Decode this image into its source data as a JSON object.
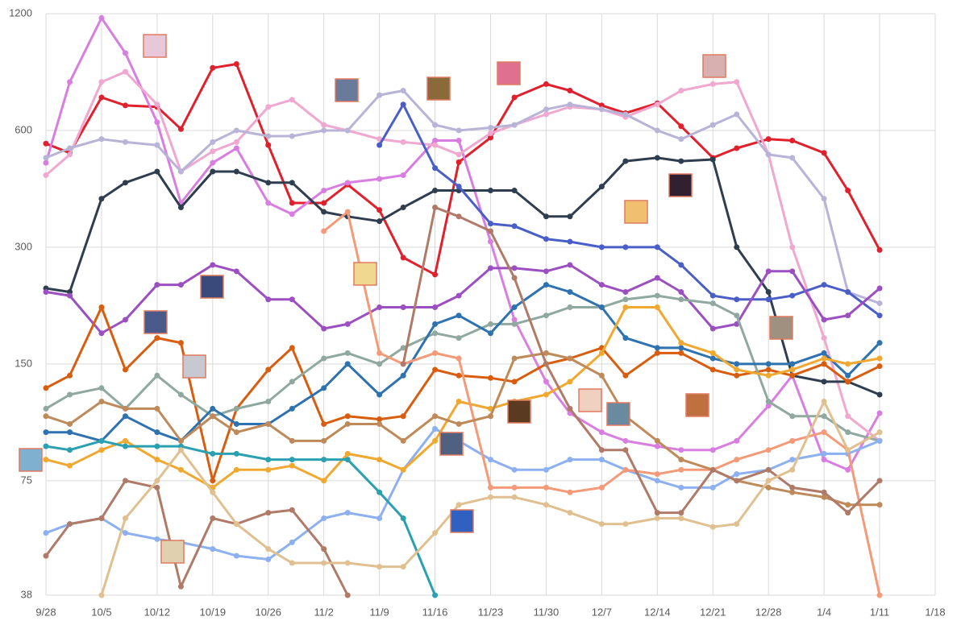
{
  "chart_data": {
    "type": "line",
    "log_y": true,
    "grid": true,
    "markers": true,
    "x": [
      "9/28",
      "10/1",
      "10/5",
      "10/8",
      "10/12",
      "10/15",
      "10/19",
      "10/22",
      "10/26",
      "10/29",
      "11/2",
      "11/5",
      "11/9",
      "11/12",
      "11/16",
      "11/19",
      "11/23",
      "11/26",
      "11/30",
      "12/3",
      "12/7",
      "12/10",
      "12/14",
      "12/17",
      "12/21",
      "12/24",
      "12/28",
      "12/31",
      "1/4",
      "1/7",
      "1/11"
    ],
    "xlim": [
      "9/28",
      "1/18"
    ],
    "xticks": [
      "9/28",
      "10/5",
      "10/12",
      "10/19",
      "10/26",
      "11/2",
      "11/9",
      "11/16",
      "11/23",
      "11/30",
      "12/7",
      "12/14",
      "12/21",
      "12/28",
      "1/4",
      "1/11",
      "1/18"
    ],
    "ylim": [
      38,
      1200
    ],
    "yticks": [
      38,
      75,
      150,
      300,
      600,
      1200
    ],
    "series": [
      {
        "color": "#e0202c",
        "values": [
          555,
          525,
          730,
          696,
          690,
          605,
          870,
          890,
          550,
          390,
          390,
          435,
          374,
          282,
          255,
          497,
          575,
          730,
          790,
          760,
          696,
          665,
          705,
          615,
          510,
          540,
          570,
          565,
          525,
          420,
          295
        ]
      },
      {
        "color": "#d87ee0",
        "values": [
          495,
          800,
          1170,
          950,
          630,
          390,
          495,
          540,
          390,
          365,
          420,
          440,
          450,
          460,
          565,
          565,
          310,
          195,
          135,
          112,
          100,
          95,
          92,
          90,
          90,
          95,
          117,
          140,
          85,
          80,
          112
        ]
      },
      {
        "color": "#f0a8d0",
        "values": [
          460,
          520,
          800,
          850,
          700,
          470,
          530,
          560,
          690,
          720,
          620,
          600,
          570,
          560,
          550,
          520,
          590,
          620,
          660,
          690,
          680,
          650,
          700,
          760,
          790,
          800,
          520,
          300,
          175,
          110,
          95
        ]
      },
      {
        "color": "#b8b4d8",
        "values": [
          510,
          540,
          570,
          560,
          550,
          470,
          560,
          600,
          580,
          580,
          600,
          600,
          740,
          760,
          620,
          600,
          610,
          620,
          680,
          700,
          680,
          660,
          600,
          570,
          620,
          660,
          520,
          510,
          400,
          230,
          215
        ]
      },
      {
        "color": "#2e3e4e",
        "values": [
          235,
          230,
          400,
          440,
          470,
          380,
          470,
          470,
          440,
          440,
          370,
          360,
          350,
          380,
          420,
          420,
          420,
          420,
          360,
          360,
          430,
          500,
          510,
          500,
          505,
          300,
          230,
          140,
          135,
          135,
          125
        ]
      },
      {
        "color": "#4a5ec8",
        "values": [
          null,
          null,
          null,
          null,
          null,
          null,
          null,
          null,
          null,
          null,
          null,
          null,
          550,
          700,
          480,
          430,
          345,
          340,
          315,
          310,
          300,
          300,
          300,
          270,
          225,
          220,
          220,
          225,
          240,
          230,
          200
        ]
      },
      {
        "color": "#9b4fc0",
        "values": [
          230,
          225,
          180,
          195,
          240,
          240,
          270,
          260,
          220,
          220,
          185,
          190,
          210,
          210,
          210,
          225,
          265,
          265,
          260,
          270,
          240,
          230,
          250,
          230,
          185,
          190,
          260,
          260,
          195,
          200,
          235
        ]
      },
      {
        "color": "#d95d0e",
        "values": [
          130,
          140,
          210,
          145,
          175,
          170,
          75,
          115,
          145,
          165,
          105,
          110,
          108,
          110,
          145,
          140,
          138,
          135,
          150,
          155,
          165,
          140,
          160,
          160,
          145,
          140,
          145,
          140,
          150,
          135,
          148
        ]
      },
      {
        "color": "#8fa8a0",
        "values": [
          115,
          125,
          130,
          115,
          140,
          125,
          110,
          115,
          120,
          135,
          155,
          160,
          150,
          165,
          180,
          175,
          190,
          190,
          200,
          210,
          210,
          220,
          225,
          220,
          215,
          200,
          120,
          110,
          110,
          100,
          95
        ]
      },
      {
        "color": "#2f72b0",
        "values": [
          100,
          100,
          95,
          110,
          100,
          95,
          115,
          105,
          105,
          115,
          130,
          150,
          125,
          140,
          190,
          200,
          180,
          210,
          240,
          230,
          210,
          175,
          165,
          165,
          155,
          150,
          150,
          150,
          160,
          140,
          170
        ]
      },
      {
        "color": "#8cb0f0",
        "values": [
          55,
          58,
          60,
          55,
          53,
          52,
          50,
          48,
          47,
          52,
          60,
          62,
          60,
          80,
          102,
          95,
          85,
          80,
          80,
          85,
          85,
          80,
          75,
          72,
          72,
          78,
          80,
          85,
          88,
          88,
          95
        ]
      },
      {
        "color": "#f0a830",
        "values": [
          85,
          82,
          90,
          95,
          85,
          80,
          72,
          80,
          80,
          82,
          75,
          88,
          85,
          80,
          95,
          120,
          115,
          120,
          125,
          135,
          160,
          210,
          210,
          170,
          160,
          145,
          140,
          145,
          155,
          150,
          155
        ]
      },
      {
        "color": "#2aa0b0",
        "values": [
          92,
          90,
          95,
          92,
          92,
          92,
          88,
          88,
          85,
          85,
          85,
          85,
          70,
          60,
          38,
          null,
          null,
          null,
          null,
          null,
          null,
          null,
          null,
          null,
          null,
          null,
          null,
          null,
          null,
          null,
          null
        ]
      },
      {
        "color": "#f59a78",
        "values": [
          null,
          null,
          null,
          null,
          null,
          null,
          null,
          null,
          null,
          null,
          330,
          370,
          160,
          150,
          160,
          155,
          72,
          72,
          72,
          70,
          72,
          80,
          78,
          80,
          80,
          85,
          90,
          95,
          100,
          90,
          38
        ]
      },
      {
        "color": "#bf8a5a",
        "values": [
          110,
          105,
          120,
          115,
          115,
          95,
          110,
          100,
          105,
          95,
          95,
          105,
          105,
          95,
          110,
          105,
          110,
          155,
          160,
          155,
          140,
          110,
          95,
          85,
          80,
          75,
          72,
          70,
          68,
          65,
          65
        ]
      },
      {
        "color": "#b07a68",
        "values": [
          48,
          58,
          60,
          75,
          72,
          40,
          60,
          58,
          62,
          63,
          50,
          38,
          null,
          150,
          380,
          360,
          330,
          250,
          150,
          115,
          90,
          90,
          62,
          62,
          80,
          75,
          80,
          72,
          70,
          62,
          75
        ]
      },
      {
        "color": "#e0c090",
        "values": [
          null,
          null,
          38,
          60,
          75,
          90,
          70,
          58,
          50,
          46,
          46,
          46,
          45,
          45,
          55,
          65,
          68,
          68,
          65,
          62,
          58,
          58,
          60,
          60,
          57,
          58,
          75,
          80,
          120,
          90,
          100
        ]
      }
    ]
  }
}
